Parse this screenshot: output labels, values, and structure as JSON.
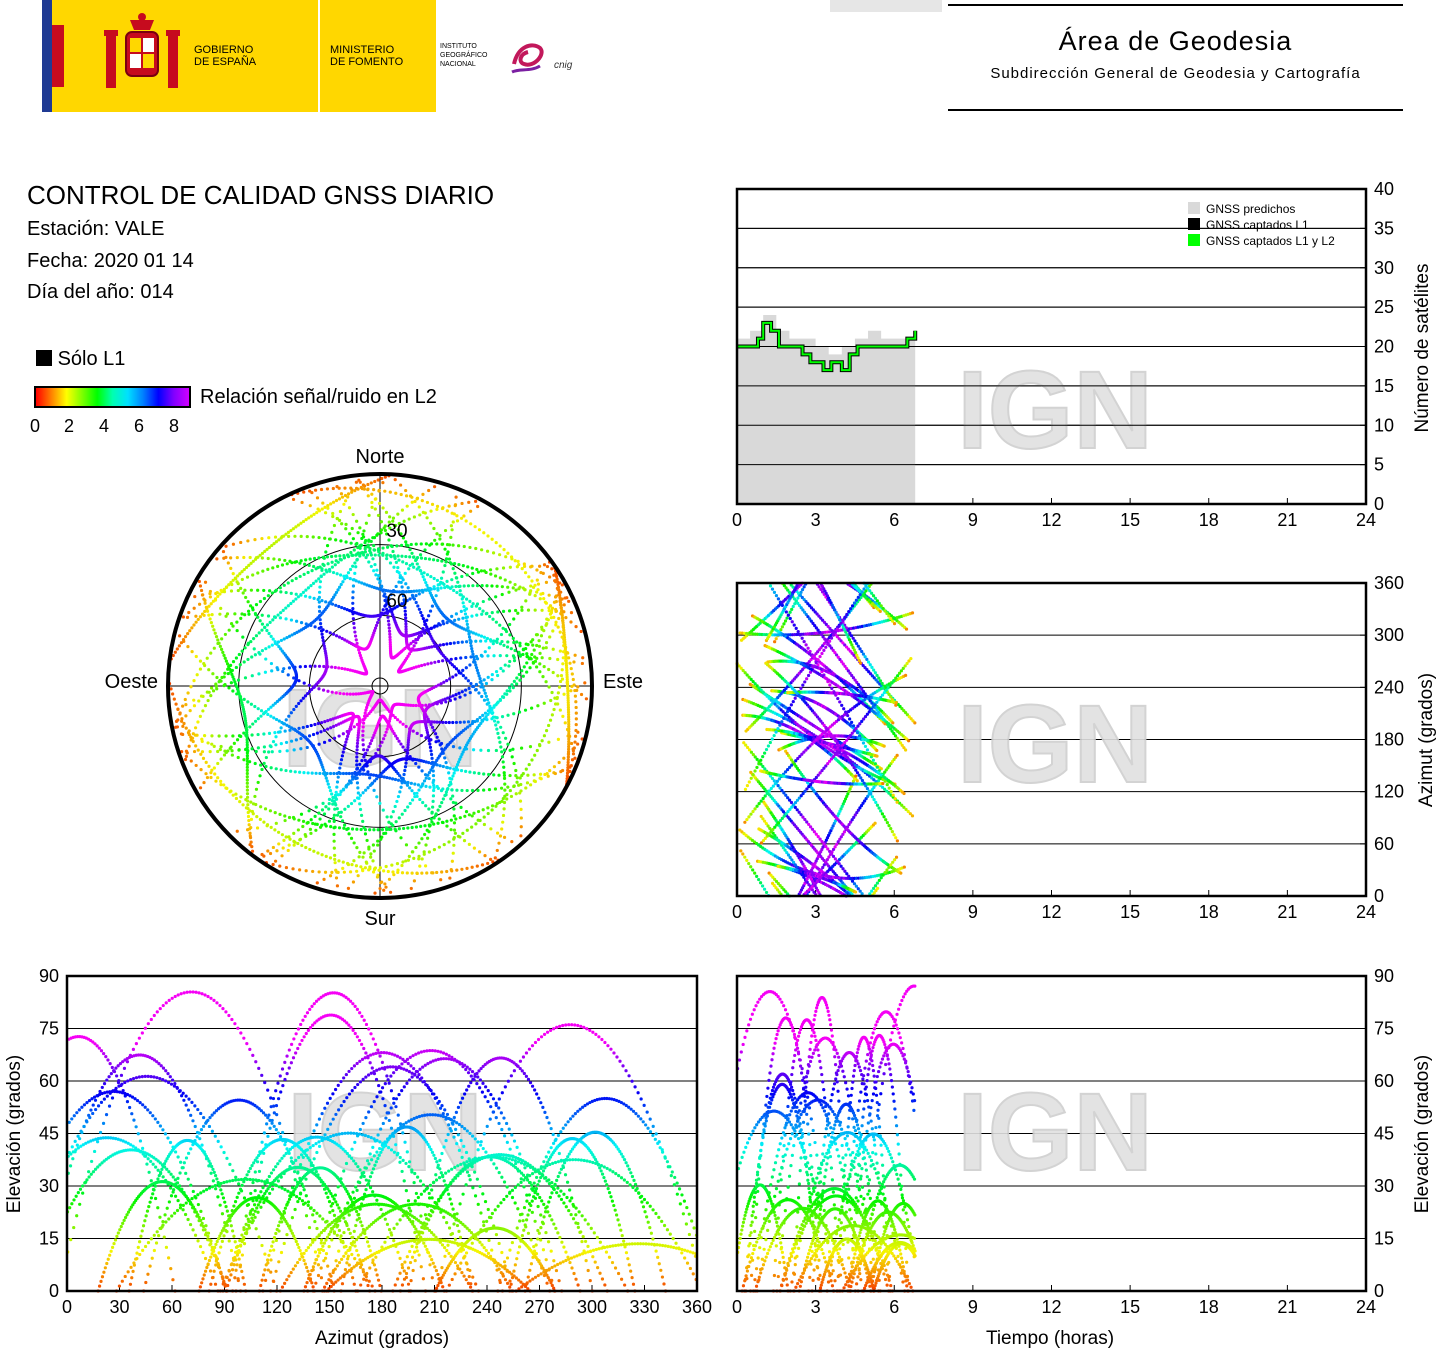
{
  "logos": {
    "gobierno": "GOBIERNO\nDE ESPAÑA",
    "ministerio": "MINISTERIO\nDE FOMENTO",
    "instituto": "INSTITUTO\nGEOGRÁFICO\nNACIONAL",
    "cnig": "cnig"
  },
  "header": {
    "title": "Área de Geodesia",
    "subtitle": "Subdirección General de Geodesia y Cartografía"
  },
  "info": {
    "title": "CONTROL DE CALIDAD GNSS DIARIO",
    "station": "Estación: VALE",
    "date": "Fecha: 2020 01 14",
    "doy": "Día del año: 014"
  },
  "legend": {
    "l1_only": "Sólo L1",
    "snr_label": "Relación señal/ruido en L2",
    "snr_ticks": [
      "0",
      "2",
      "4",
      "6",
      "8"
    ]
  },
  "watermark": "IGN",
  "colors": {
    "predicted": "#d9d9d9",
    "captured_l1": "#000000",
    "captured_l1l2": "#00ff00"
  },
  "chart_data": [
    {
      "type": "line",
      "id": "satellites",
      "ylabel": "Número de satélites",
      "xlim": [
        0,
        24
      ],
      "ylim": [
        0,
        40
      ],
      "xticks": [
        "0",
        "3",
        "6",
        "9",
        "12",
        "15",
        "18",
        "21",
        "24"
      ],
      "yticks": [
        "0",
        "5",
        "10",
        "15",
        "20",
        "25",
        "30",
        "35",
        "40"
      ],
      "legend": [
        "GNSS predichos",
        "GNSS captados L1",
        "GNSS captados L1 y L2"
      ],
      "legend_position": "top-right",
      "grid": true,
      "series": [
        {
          "name": "GNSS predichos",
          "x": [
            0,
            0.5,
            1,
            1.5,
            2,
            2.5,
            3,
            3.5,
            4,
            4.5,
            5,
            5.5,
            6,
            6.5,
            6.8
          ],
          "values": [
            21,
            22,
            24,
            22,
            21,
            21,
            20,
            19,
            20,
            21,
            22,
            21,
            21,
            21,
            22
          ]
        },
        {
          "name": "GNSS captados L1",
          "x": [
            0,
            0.5,
            0.8,
            1,
            1.3,
            1.6,
            2,
            2.5,
            2.8,
            3,
            3.3,
            3.6,
            4,
            4.3,
            4.6,
            5,
            5.5,
            6,
            6.3,
            6.5,
            6.8
          ],
          "values": [
            20,
            20,
            21,
            23,
            22,
            20,
            20,
            19,
            18,
            18,
            17,
            18,
            17,
            19,
            20,
            20,
            20,
            20,
            20,
            21,
            22
          ]
        },
        {
          "name": "GNSS captados L1 y L2",
          "x": [
            0,
            0.5,
            0.8,
            1,
            1.3,
            1.6,
            2,
            2.5,
            2.8,
            3,
            3.3,
            3.6,
            4,
            4.3,
            4.6,
            5,
            5.5,
            6,
            6.3,
            6.5,
            6.8
          ],
          "values": [
            20,
            20,
            21,
            23,
            22,
            20,
            20,
            19,
            18,
            18,
            17,
            18,
            17,
            19,
            20,
            20,
            20,
            20,
            20,
            21,
            22
          ]
        }
      ]
    },
    {
      "type": "scatter",
      "id": "skyplot",
      "labels": {
        "north": "Norte",
        "south": "Sur",
        "west": "Oeste",
        "east": "Este"
      },
      "rings": [
        "30",
        "60"
      ]
    },
    {
      "type": "scatter",
      "id": "azimuth_time",
      "ylabel": "Azimut (grados)",
      "xlim": [
        0,
        24
      ],
      "ylim": [
        0,
        360
      ],
      "xticks": [
        "0",
        "3",
        "6",
        "9",
        "12",
        "15",
        "18",
        "21",
        "24"
      ],
      "yticks": [
        "0",
        "60",
        "120",
        "180",
        "240",
        "300",
        "360"
      ],
      "grid": true
    },
    {
      "type": "scatter",
      "id": "elevation_azimuth",
      "xlabel": "Azimut (grados)",
      "ylabel": "Elevación (grados)",
      "xlim": [
        0,
        360
      ],
      "ylim": [
        0,
        90
      ],
      "xticks": [
        "0",
        "30",
        "60",
        "90",
        "120",
        "150",
        "180",
        "210",
        "240",
        "270",
        "300",
        "330",
        "360"
      ],
      "yticks": [
        "0",
        "15",
        "30",
        "45",
        "60",
        "75",
        "90"
      ],
      "grid": true
    },
    {
      "type": "scatter",
      "id": "elevation_time",
      "xlabel": "Tiempo (horas)",
      "ylabel": "Elevación (grados)",
      "xlim": [
        0,
        24
      ],
      "ylim": [
        0,
        90
      ],
      "xticks": [
        "0",
        "3",
        "6",
        "9",
        "12",
        "15",
        "18",
        "21",
        "24"
      ],
      "yticks": [
        "0",
        "15",
        "30",
        "45",
        "60",
        "75",
        "90"
      ],
      "grid": true
    }
  ]
}
